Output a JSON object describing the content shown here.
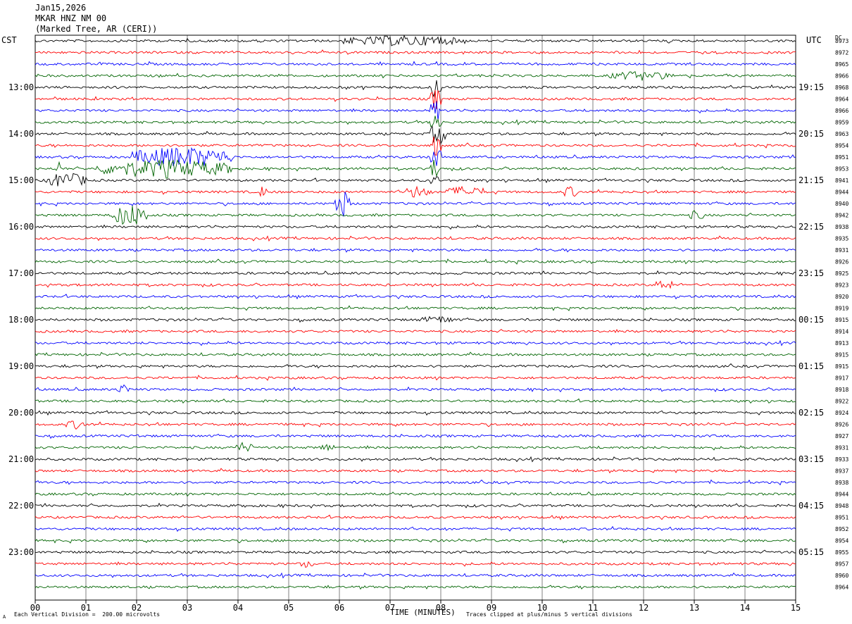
{
  "header": {
    "date": "Jan15,2026",
    "station": "MKAR HNZ NM 00",
    "location": "(Marked Tree, AR (CERI))"
  },
  "left_tz": "CST",
  "right_tz": "UTC",
  "dc_label": "DC",
  "footer": {
    "scale_note": "Each Vertical Division =  200.00 microvolts",
    "clip_note": "Traces clipped at plus/minus 5 vertical divisions",
    "corner_mark": "A"
  },
  "colors": {
    "cycle": [
      "#000000",
      "#ff0000",
      "#0000ff",
      "#006400"
    ],
    "grid": "#000000",
    "background": "#ffffff"
  },
  "chart_data": {
    "type": "line",
    "title": "",
    "xlabel": "TIME (MINUTES)",
    "xlim": [
      0,
      15
    ],
    "x_ticks": [
      "00",
      "01",
      "02",
      "03",
      "04",
      "05",
      "06",
      "07",
      "08",
      "09",
      "10",
      "11",
      "12",
      "13",
      "14",
      "15"
    ],
    "left_hour_labels": [
      "13:00",
      "14:00",
      "15:00",
      "16:00",
      "17:00",
      "18:00",
      "19:00",
      "20:00",
      "21:00",
      "22:00",
      "23:00"
    ],
    "right_hour_labels": [
      "19:15",
      "20:15",
      "21:15",
      "22:15",
      "23:15",
      "00:15",
      "01:15",
      "02:15",
      "03:15",
      "04:15",
      "05:15"
    ],
    "dc_offsets": [
      "8973",
      "8972",
      "8965",
      "8966",
      "8968",
      "8964",
      "8966",
      "8959",
      "8963",
      "8954",
      "8951",
      "8953",
      "8941",
      "8944",
      "8940",
      "8942",
      "8938",
      "8935",
      "8931",
      "8926",
      "8925",
      "8923",
      "8920",
      "8919",
      "8915",
      "8914",
      "8913",
      "8915",
      "8915",
      "8917",
      "8918",
      "8922",
      "8924",
      "8926",
      "8927",
      "8931",
      "8933",
      "8937",
      "8938",
      "8944",
      "8948",
      "8951",
      "8952",
      "8954",
      "8955",
      "8957",
      "8960",
      "8964"
    ],
    "grid": true,
    "events": [
      {
        "trace": 0,
        "start": 6.0,
        "end": 8.5,
        "amp": 8
      },
      {
        "trace": 0,
        "start": 7.8,
        "end": 8.0,
        "amp": 14
      },
      {
        "trace": 4,
        "start": 7.8,
        "end": 8.0,
        "amp": 16
      },
      {
        "trace": 5,
        "start": 7.8,
        "end": 8.0,
        "amp": 18
      },
      {
        "trace": 6,
        "start": 7.8,
        "end": 8.0,
        "amp": 18
      },
      {
        "trace": 7,
        "start": 7.8,
        "end": 8.0,
        "amp": 18
      },
      {
        "trace": 8,
        "start": 7.8,
        "end": 8.1,
        "amp": 18
      },
      {
        "trace": 9,
        "start": 7.8,
        "end": 8.0,
        "amp": 18
      },
      {
        "trace": 10,
        "start": 7.8,
        "end": 8.0,
        "amp": 18
      },
      {
        "trace": 11,
        "start": 7.8,
        "end": 8.0,
        "amp": 18
      },
      {
        "trace": 12,
        "start": 7.8,
        "end": 7.95,
        "amp": 10
      },
      {
        "trace": 10,
        "start": 1.9,
        "end": 3.9,
        "amp": 16
      },
      {
        "trace": 11,
        "start": 1.2,
        "end": 3.9,
        "amp": 14
      },
      {
        "trace": 11,
        "start": 0.4,
        "end": 0.5,
        "amp": 14
      },
      {
        "trace": 12,
        "start": 0.2,
        "end": 1.0,
        "amp": 12
      },
      {
        "trace": 13,
        "start": 4.4,
        "end": 4.6,
        "amp": 9
      },
      {
        "trace": 13,
        "start": 7.3,
        "end": 7.8,
        "amp": 10
      },
      {
        "trace": 13,
        "start": 8.1,
        "end": 8.9,
        "amp": 9
      },
      {
        "trace": 13,
        "start": 10.4,
        "end": 10.7,
        "amp": 9
      },
      {
        "trace": 14,
        "start": 5.9,
        "end": 6.2,
        "amp": 22
      },
      {
        "trace": 15,
        "start": 1.5,
        "end": 2.2,
        "amp": 18
      },
      {
        "trace": 15,
        "start": 12.9,
        "end": 13.2,
        "amp": 8
      },
      {
        "trace": 3,
        "start": 11.3,
        "end": 12.6,
        "amp": 7
      },
      {
        "trace": 21,
        "start": 12.2,
        "end": 12.6,
        "amp": 8
      },
      {
        "trace": 24,
        "start": 7.6,
        "end": 8.3,
        "amp": 6
      },
      {
        "trace": 30,
        "start": 1.6,
        "end": 1.9,
        "amp": 7
      },
      {
        "trace": 33,
        "start": 0.6,
        "end": 1.0,
        "amp": 7
      },
      {
        "trace": 35,
        "start": 3.9,
        "end": 4.3,
        "amp": 8
      },
      {
        "trace": 35,
        "start": 5.6,
        "end": 5.9,
        "amp": 6
      },
      {
        "trace": 45,
        "start": 5.2,
        "end": 5.5,
        "amp": 6
      }
    ]
  }
}
